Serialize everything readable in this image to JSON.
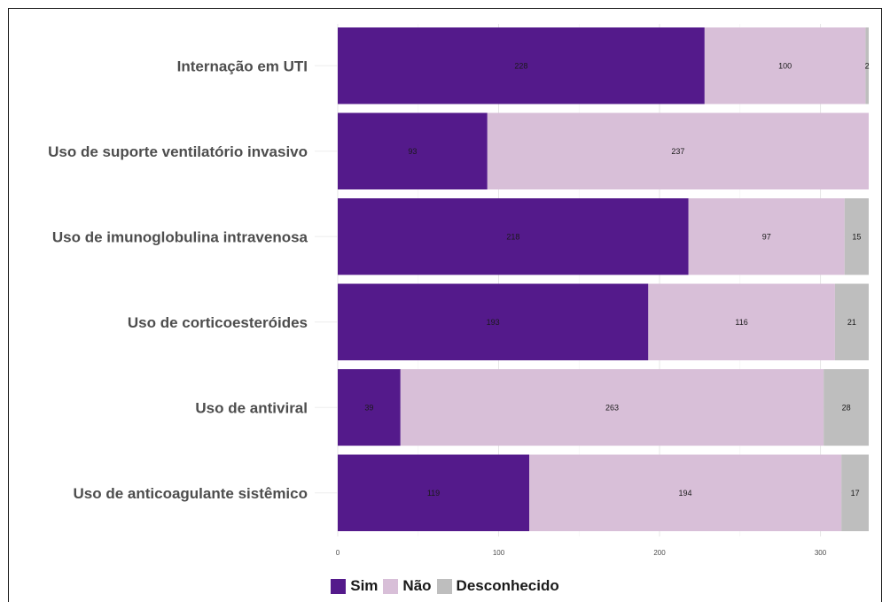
{
  "chart_data": {
    "type": "bar",
    "orientation": "horizontal",
    "stacked": true,
    "title": "",
    "xlabel": "",
    "ylabel": "",
    "categories": [
      "Internação em UTI",
      "Uso de suporte ventilatório invasivo",
      "Uso de imunoglobulina intravenosa",
      "Uso de corticoesteróides",
      "Uso de antiviral",
      "Uso de anticoagulante sistêmico"
    ],
    "series": [
      {
        "name": "Sim",
        "color": "#541a8b",
        "values": [
          228,
          93,
          218,
          193,
          39,
          119
        ]
      },
      {
        "name": "Não",
        "color": "#d8bfd8",
        "values": [
          100,
          237,
          97,
          116,
          263,
          194
        ]
      },
      {
        "name": "Desconhecido",
        "color": "#bebebe",
        "values": [
          2,
          0,
          15,
          21,
          28,
          17
        ]
      }
    ],
    "xlim": [
      0,
      330
    ],
    "xticks": [
      0,
      100,
      200,
      300
    ],
    "grid": true,
    "legend_position": "bottom"
  }
}
